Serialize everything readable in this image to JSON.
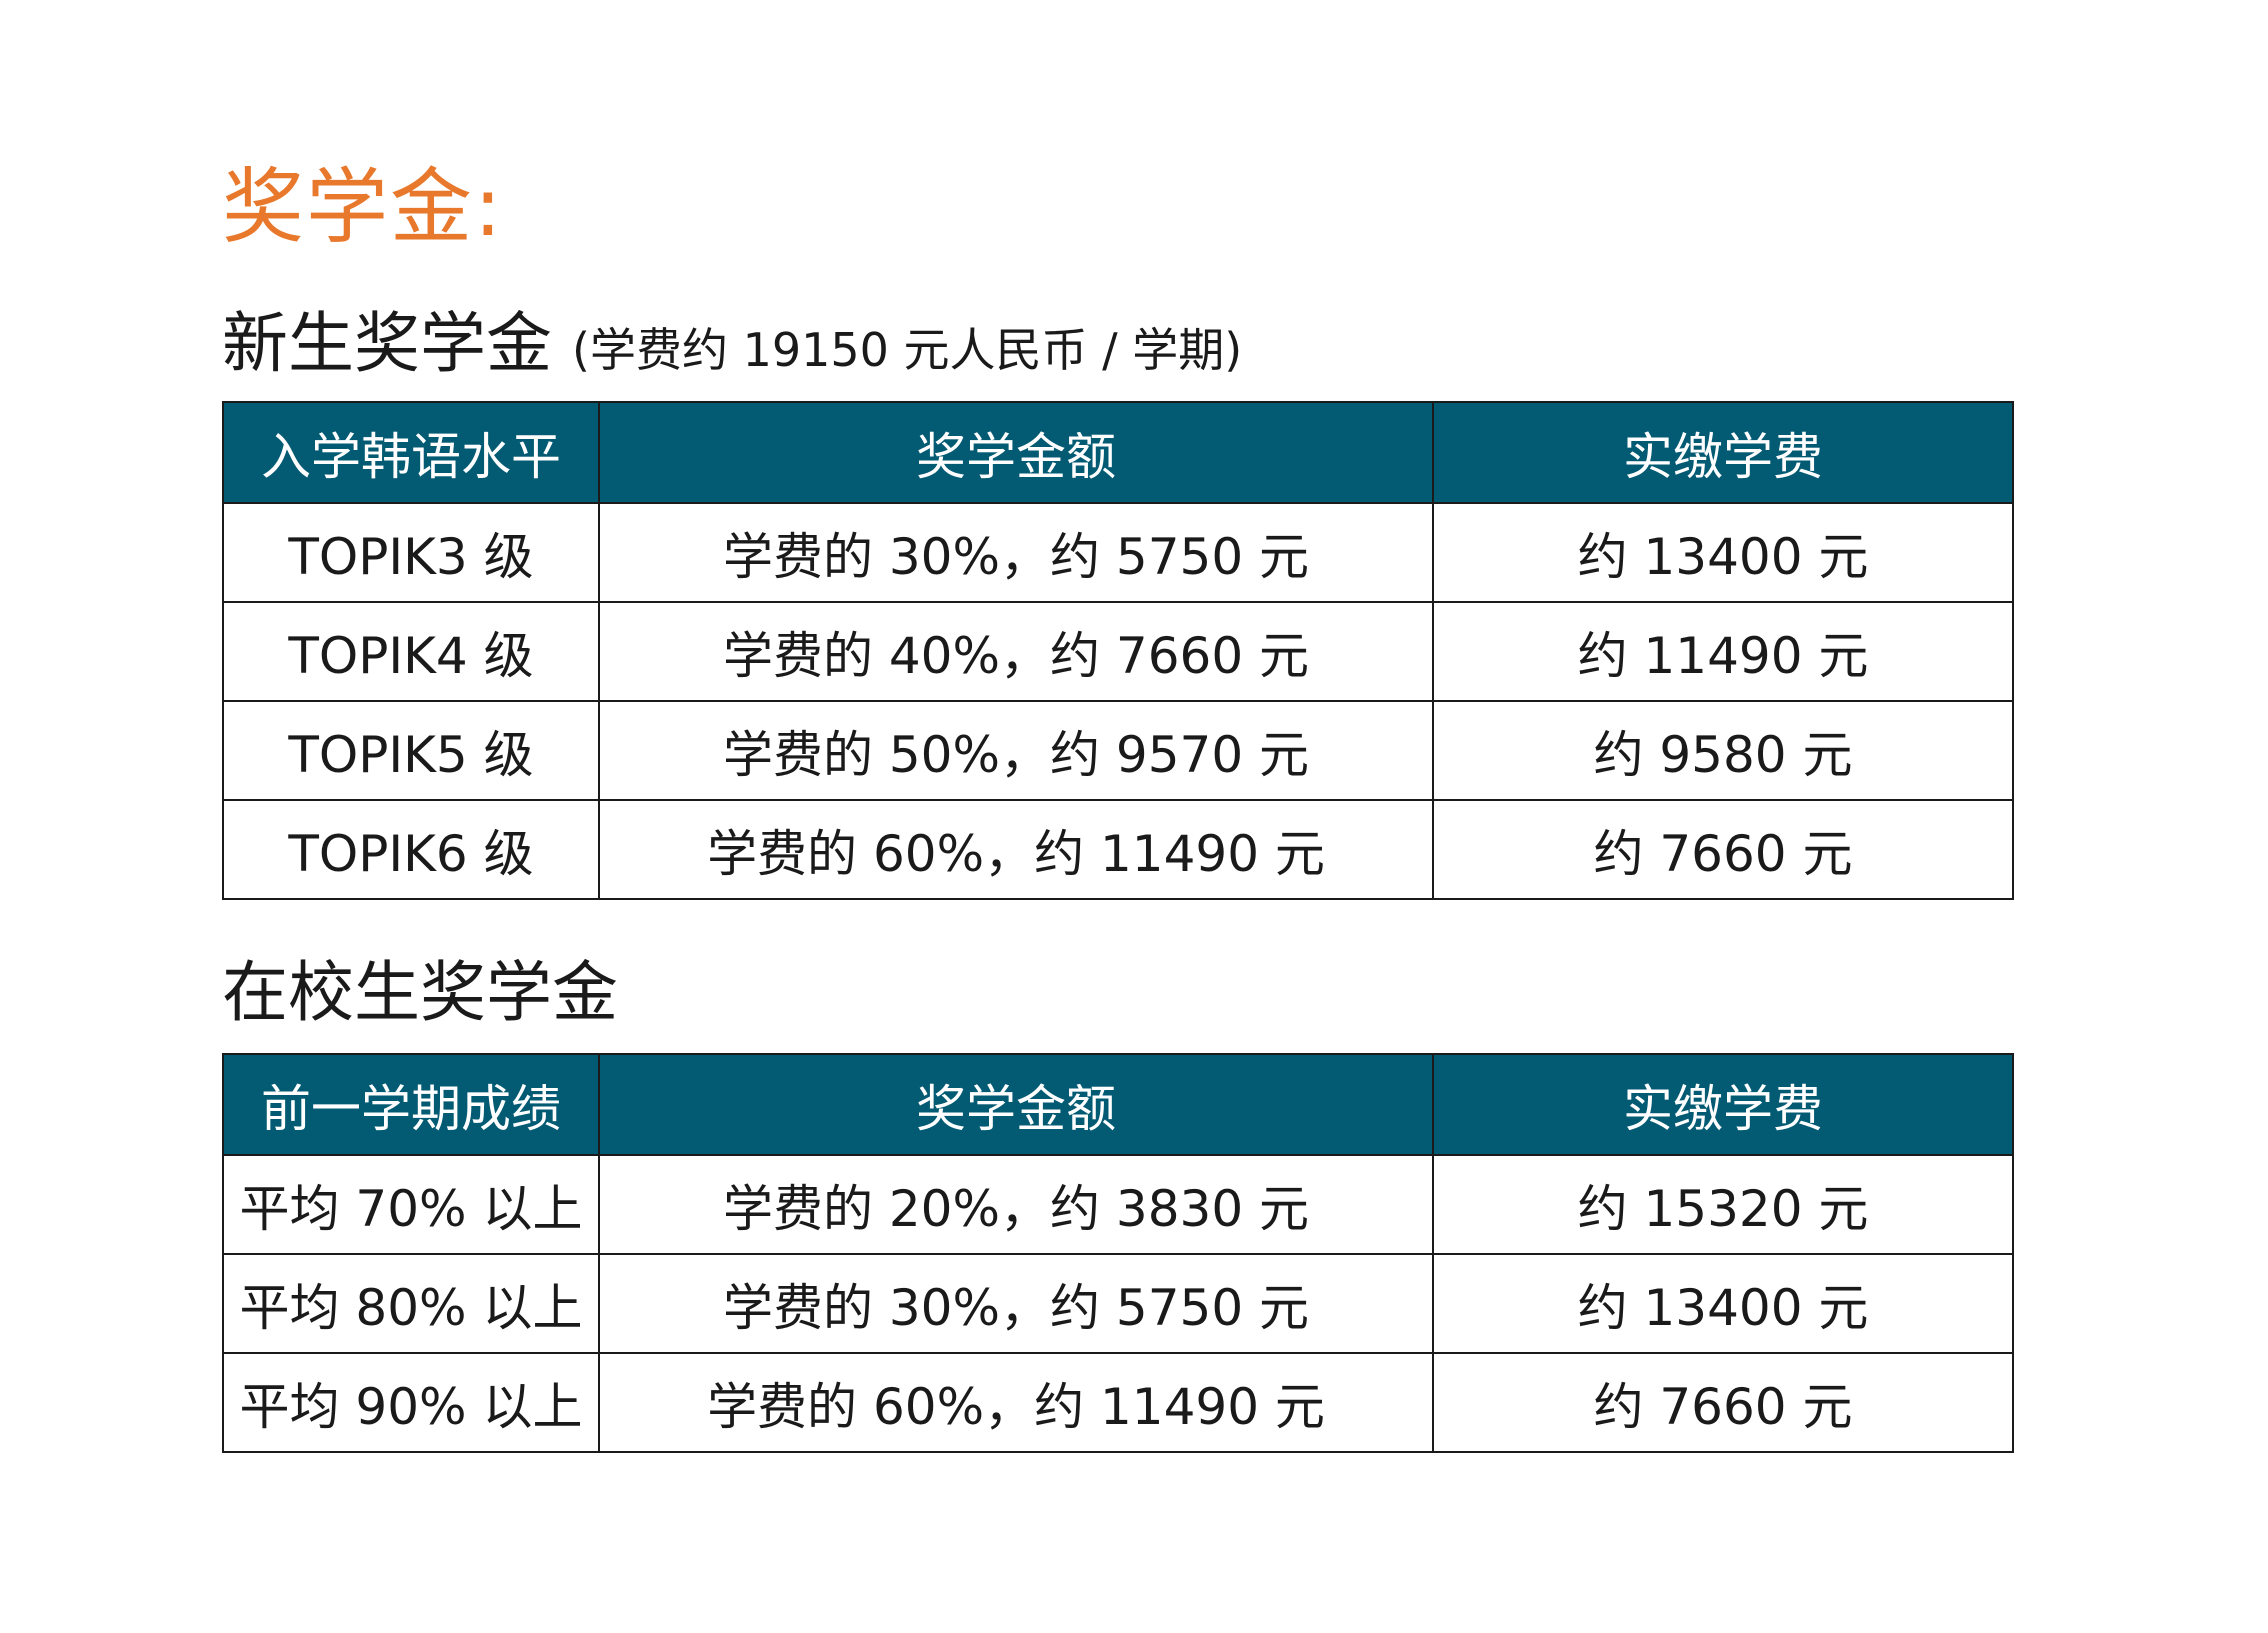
{
  "page_title": "奖学金:",
  "section_new": {
    "title": "新生奖学金",
    "note": "(学费约 19150 元人民币 / 学期)",
    "headers": [
      "入学韩语水平",
      "奖学金额",
      "实缴学费"
    ],
    "rows": [
      [
        "TOPIK3 级",
        "学费的 30%，约 5750 元",
        "约 13400 元"
      ],
      [
        "TOPIK4 级",
        "学费的 40%，约 7660 元",
        "约 11490 元"
      ],
      [
        "TOPIK5 级",
        "学费的 50%，约 9570 元",
        "约 9580 元"
      ],
      [
        "TOPIK6 级",
        "学费的 60%，约 11490 元",
        "约 7660 元"
      ]
    ]
  },
  "section_current": {
    "title": "在校生奖学金",
    "headers": [
      "前一学期成绩",
      "奖学金额",
      "实缴学费"
    ],
    "rows": [
      [
        "平均 70% 以上",
        "学费的 20%，约 3830 元",
        "约 15320 元"
      ],
      [
        "平均 80% 以上",
        "学费的 30%，约 5750 元",
        "约 13400 元"
      ],
      [
        "平均 90% 以上",
        "学费的 60%，约 11490 元",
        "约 7660 元"
      ]
    ]
  },
  "colors": {
    "title_orange": "#e8782b",
    "header_teal": "#035a73",
    "border": "#1a1a1a"
  }
}
